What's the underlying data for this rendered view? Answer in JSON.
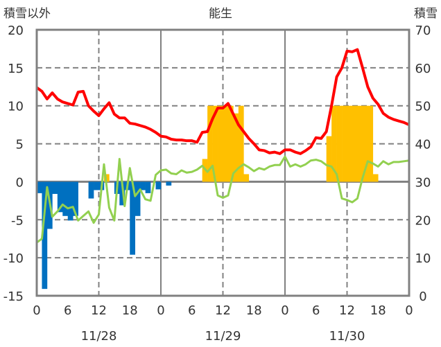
{
  "chart_data": {
    "type": "line",
    "title": "能生",
    "ylabel_left": "積雪以外",
    "ylabel_right": "積雪",
    "ylim_left": [
      -15,
      20
    ],
    "ylim_right": [
      0,
      70
    ],
    "yticks_left": [
      "20",
      "15",
      "10",
      "5",
      "0",
      "-5",
      "-10",
      "-15"
    ],
    "yticks_right": [
      "70",
      "60",
      "50",
      "40",
      "30",
      "20",
      "10",
      "0"
    ],
    "xlim_hours": [
      0,
      72
    ],
    "xtick_labels": [
      "0",
      "6",
      "12",
      "18",
      "0",
      "6",
      "12",
      "18",
      "0",
      "6",
      "12",
      "18",
      "0"
    ],
    "date_labels": [
      "11/28",
      "11/29",
      "11/30"
    ],
    "grid": true,
    "series": [
      {
        "id": "red_line",
        "color": "#ff0000",
        "axis": "left",
        "type": "line",
        "values": [
          12.4,
          11.9,
          10.9,
          11.7,
          10.9,
          10.5,
          10.3,
          10.1,
          11.8,
          11.9,
          10.0,
          9.3,
          8.7,
          9.6,
          10.4,
          8.9,
          8.4,
          8.4,
          7.7,
          7.6,
          7.4,
          7.2,
          6.9,
          6.5,
          6.0,
          5.9,
          5.6,
          5.5,
          5.5,
          5.4,
          5.4,
          5.2,
          6.5,
          6.6,
          8.3,
          9.7,
          9.7,
          10.3,
          8.9,
          7.5,
          6.6,
          5.7,
          5.0,
          4.2,
          4.1,
          3.8,
          3.9,
          3.7,
          4.2,
          4.2,
          3.9,
          3.7,
          4.1,
          4.6,
          5.8,
          5.7,
          6.6,
          10.0,
          13.8,
          15.0,
          17.2,
          17.1,
          17.4,
          15.0,
          12.5,
          11.0,
          10.2,
          9.0,
          8.5,
          8.2,
          8.0,
          7.8,
          7.5
        ]
      },
      {
        "id": "green_line",
        "color": "#92d050",
        "axis": "left",
        "type": "line",
        "values": [
          -8.0,
          -7.5,
          -0.7,
          -4.6,
          -3.9,
          -3.0,
          -3.5,
          -3.3,
          -5.1,
          -4.5,
          -3.9,
          -5.4,
          -4.3,
          2.3,
          -3.4,
          -5.1,
          3.0,
          -3.2,
          1.8,
          -1.9,
          -1.0,
          -2.3,
          -2.5,
          0.9,
          1.5,
          1.6,
          1.1,
          1.0,
          1.5,
          1.2,
          1.3,
          1.6,
          2.1,
          1.3,
          2.1,
          -1.8,
          -2.1,
          -1.8,
          1.1,
          1.8,
          2.3,
          1.9,
          1.4,
          1.8,
          1.6,
          2.0,
          2.2,
          2.2,
          3.3,
          2.0,
          2.3,
          2.0,
          2.3,
          2.8,
          2.9,
          2.7,
          2.2,
          2.0,
          1.0,
          -2.2,
          -2.4,
          -2.7,
          -2.2,
          0.5,
          2.7,
          2.4,
          2.0,
          2.7,
          2.3,
          2.6,
          2.6,
          2.7,
          2.8
        ]
      },
      {
        "id": "blue_bars",
        "color": "#0070c0",
        "axis": "left",
        "type": "bar",
        "values": [
          -1.5,
          -14.1,
          -6.2,
          -1.6,
          -4.0,
          -4.5,
          -5.1,
          -4.5,
          0,
          0,
          -2.2,
          -1.1,
          -1.1,
          0,
          0,
          -1.6,
          -3.1,
          -1.1,
          -9.6,
          -4.5,
          -1.1,
          -1.5,
          0,
          -1.0,
          0,
          -0.5
        ]
      },
      {
        "id": "yellow_bars",
        "color": "#ffc000",
        "axis": "left",
        "type": "bar",
        "values": [
          0,
          0,
          0,
          0,
          0,
          0,
          0,
          0,
          0,
          0,
          0,
          0,
          0,
          1.0,
          0,
          0,
          0,
          0,
          0,
          0,
          0,
          0,
          0,
          0,
          0,
          0,
          0,
          0,
          0,
          0,
          0,
          0,
          3.0,
          10,
          10,
          10,
          10,
          10,
          9.0,
          10,
          1.0,
          0,
          0,
          0,
          0,
          0,
          0,
          0,
          0,
          0,
          0,
          0,
          0,
          0,
          0,
          0,
          6.0,
          10,
          10,
          10,
          10,
          10,
          10,
          10,
          10,
          1.0
        ]
      },
      {
        "id": "purple_line",
        "color": "#7030a0",
        "axis": "right",
        "type": "line",
        "values": [
          0,
          0
        ]
      }
    ]
  }
}
